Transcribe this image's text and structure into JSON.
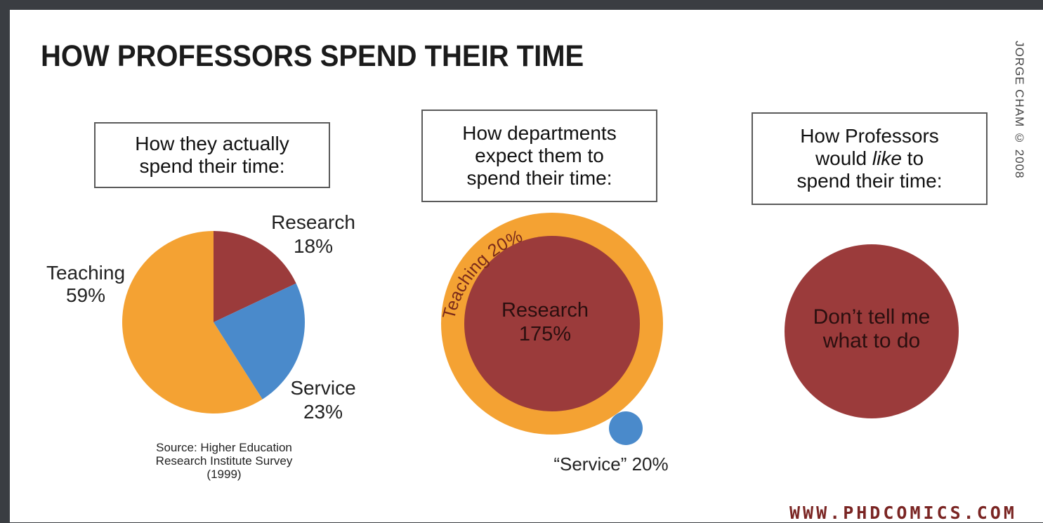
{
  "title": "HOW PROFESSORS SPEND THEIR TIME",
  "credit": "JORGE CHAM © 2008",
  "site": "WWW.PHDCOMICS.COM",
  "colors": {
    "teaching": "#f4a233",
    "research": "#9b3b3b",
    "service": "#4a8acb"
  },
  "panels": [
    {
      "box": [
        "How they actually",
        "spend their time:"
      ]
    },
    {
      "box": [
        "How departments",
        "expect them to",
        "spend their time:"
      ]
    },
    {
      "box": [
        "How Professors",
        "would ",
        "like",
        " to",
        "spend their time:"
      ]
    }
  ],
  "source": [
    "Source: Higher Education",
    "Research Institute Survey",
    "(1999)"
  ],
  "chart_data": [
    {
      "type": "pie",
      "title": "How they actually spend their time:",
      "slices": [
        {
          "label": "Research",
          "value": 18,
          "value_label": "18%",
          "color": "#9b3b3b"
        },
        {
          "label": "Service",
          "value": 23,
          "value_label": "23%",
          "color": "#4a8acb"
        },
        {
          "label": "Teaching",
          "value": 59,
          "value_label": "59%",
          "color": "#f4a233"
        }
      ]
    },
    {
      "type": "pie",
      "title": "How departments expect them to spend their time:",
      "slices": [
        {
          "label": "Research",
          "value": 175,
          "value_label": "175%",
          "color": "#9b3b3b"
        },
        {
          "label": "Teaching",
          "value": 20,
          "value_label": "20%",
          "color": "#f4a233"
        },
        {
          "label": "“Service”",
          "value": 20,
          "value_label": "20%",
          "color": "#4a8acb"
        }
      ]
    },
    {
      "type": "pie",
      "title": "How Professors would like to spend their time:",
      "slices": [
        {
          "label": "Don’t tell me what to do",
          "color": "#9b3b3b"
        }
      ]
    }
  ]
}
